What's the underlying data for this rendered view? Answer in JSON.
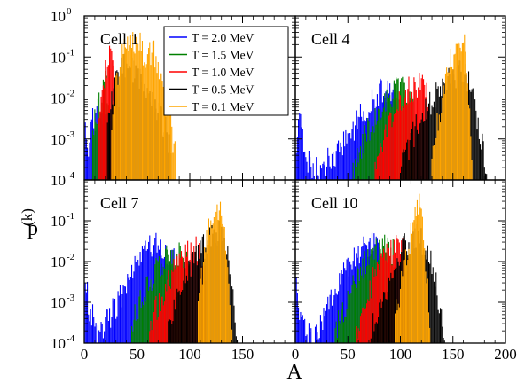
{
  "chart_data": {
    "type": "bar",
    "title": "",
    "xlabel": "A",
    "ylabel": "p(k)",
    "ylabel_main": "p",
    "ylabel_superscript": "(k)",
    "y_scale": "log",
    "xlim": [
      0,
      200
    ],
    "ylim": [
      0.0001,
      1
    ],
    "x_ticks": [
      "0",
      "50",
      "100",
      "150",
      "200"
    ],
    "y_ticks": [
      {
        "base": "10",
        "exp": "0"
      },
      {
        "base": "10",
        "exp": "-1"
      },
      {
        "base": "10",
        "exp": "-2"
      },
      {
        "base": "10",
        "exp": "-3"
      },
      {
        "base": "10",
        "exp": "-4"
      }
    ],
    "legend_position": "top-left panel, upper right",
    "series": [
      {
        "name": "T = 2.0 MeV",
        "color": "#0000ff"
      },
      {
        "name": "T = 1.5 MeV",
        "color": "#008000"
      },
      {
        "name": "T = 1.0 MeV",
        "color": "#ff0000"
      },
      {
        "name": "T = 0.5 MeV",
        "color": "#000000"
      },
      {
        "name": "T = 0.1 MeV",
        "color": "#ffa500"
      }
    ],
    "panels": [
      {
        "label": "Cell 1",
        "envelopes": [
          {
            "series": 0,
            "start": 1,
            "end": 22,
            "peaks": [
              [
                1,
                0.002
              ],
              [
                4,
                0.0008
              ],
              [
                8,
                0.004
              ],
              [
                13,
                0.003
              ],
              [
                18,
                0.004
              ],
              [
                21,
                0.002
              ]
            ]
          },
          {
            "series": 1,
            "start": 8,
            "end": 24,
            "peaks": [
              [
                8,
                0.002
              ],
              [
                12,
                0.005
              ],
              [
                16,
                0.01
              ],
              [
                20,
                0.03
              ],
              [
                23,
                0.006
              ]
            ]
          },
          {
            "series": 2,
            "start": 14,
            "end": 34,
            "peaks": [
              [
                14,
                0.003
              ],
              [
                20,
                0.05
              ],
              [
                24,
                0.15
              ],
              [
                28,
                0.06
              ],
              [
                33,
                0.006
              ]
            ]
          },
          {
            "series": 3,
            "start": 22,
            "end": 82,
            "peaks": [
              [
                22,
                0.002
              ],
              [
                28,
                0.02
              ],
              [
                34,
                0.06
              ],
              [
                40,
                0.07
              ],
              [
                48,
                0.04
              ],
              [
                56,
                0.02
              ],
              [
                64,
                0.01
              ],
              [
                72,
                0.004
              ],
              [
                80,
                0.001
              ]
            ]
          },
          {
            "series": 4,
            "start": 26,
            "end": 86,
            "peaks": [
              [
                26,
                0.003
              ],
              [
                32,
                0.05
              ],
              [
                40,
                0.25
              ],
              [
                46,
                0.2
              ],
              [
                52,
                0.3
              ],
              [
                58,
                0.1
              ],
              [
                66,
                0.15
              ],
              [
                74,
                0.03
              ],
              [
                80,
                0.005
              ],
              [
                86,
                0.0005
              ]
            ]
          }
        ]
      },
      {
        "label": "Cell 4",
        "envelopes": [
          {
            "series": 0,
            "start": 1,
            "end": 95,
            "peaks": [
              [
                1,
                0.001
              ],
              [
                4,
                0.004
              ],
              [
                10,
                0.0004
              ],
              [
                22,
                0.00015
              ],
              [
                40,
                0.0006
              ],
              [
                60,
                0.003
              ],
              [
                80,
                0.015
              ],
              [
                95,
                0.02
              ]
            ]
          },
          {
            "series": 1,
            "start": 55,
            "end": 112,
            "peaks": [
              [
                55,
                0.0002
              ],
              [
                70,
                0.002
              ],
              [
                85,
                0.008
              ],
              [
                100,
                0.02
              ],
              [
                112,
                0.015
              ]
            ]
          },
          {
            "series": 2,
            "start": 75,
            "end": 126,
            "peaks": [
              [
                75,
                0.0002
              ],
              [
                90,
                0.003
              ],
              [
                105,
                0.015
              ],
              [
                118,
                0.025
              ],
              [
                126,
                0.01
              ]
            ]
          },
          {
            "series": 3,
            "start": 100,
            "end": 182,
            "peaks": [
              [
                100,
                0.0002
              ],
              [
                115,
                0.002
              ],
              [
                130,
                0.01
              ],
              [
                145,
                0.03
              ],
              [
                160,
                0.05
              ],
              [
                170,
                0.01
              ],
              [
                182,
                0.0002
              ]
            ]
          },
          {
            "series": 4,
            "start": 130,
            "end": 168,
            "peaks": [
              [
                130,
                0.0005
              ],
              [
                140,
                0.01
              ],
              [
                148,
                0.08
              ],
              [
                156,
                0.3
              ],
              [
                162,
                0.2
              ],
              [
                168,
                0.0005
              ]
            ]
          }
        ]
      },
      {
        "label": "Cell 7",
        "envelopes": [
          {
            "series": 0,
            "start": 1,
            "end": 85,
            "peaks": [
              [
                1,
                0.005
              ],
              [
                4,
                0.001
              ],
              [
                12,
                0.0002
              ],
              [
                20,
                0.0003
              ],
              [
                40,
                0.003
              ],
              [
                55,
                0.015
              ],
              [
                65,
                0.03
              ],
              [
                75,
                0.02
              ],
              [
                85,
                0.015
              ]
            ]
          },
          {
            "series": 1,
            "start": 45,
            "end": 100,
            "peaks": [
              [
                45,
                0.0003
              ],
              [
                60,
                0.003
              ],
              [
                75,
                0.012
              ],
              [
                90,
                0.02
              ],
              [
                100,
                0.012
              ]
            ]
          },
          {
            "series": 2,
            "start": 62,
            "end": 115,
            "peaks": [
              [
                62,
                0.0003
              ],
              [
                75,
                0.002
              ],
              [
                90,
                0.012
              ],
              [
                105,
                0.025
              ],
              [
                115,
                0.008
              ]
            ]
          },
          {
            "series": 3,
            "start": 80,
            "end": 145,
            "peaks": [
              [
                80,
                0.0003
              ],
              [
                95,
                0.005
              ],
              [
                110,
                0.02
              ],
              [
                122,
                0.05
              ],
              [
                132,
                0.07
              ],
              [
                145,
                0.0002
              ]
            ]
          },
          {
            "series": 4,
            "start": 108,
            "end": 140,
            "peaks": [
              [
                108,
                0.001
              ],
              [
                116,
                0.03
              ],
              [
                122,
                0.2
              ],
              [
                126,
                0.3
              ],
              [
                132,
                0.08
              ],
              [
                140,
                0.0003
              ]
            ]
          }
        ]
      },
      {
        "label": "Cell 10",
        "envelopes": [
          {
            "series": 0,
            "start": 1,
            "end": 80,
            "peaks": [
              [
                1,
                0.003
              ],
              [
                4,
                0.0008
              ],
              [
                10,
                0.00015
              ],
              [
                20,
                0.0002
              ],
              [
                35,
                0.002
              ],
              [
                55,
                0.015
              ],
              [
                70,
                0.03
              ],
              [
                80,
                0.02
              ]
            ]
          },
          {
            "series": 1,
            "start": 38,
            "end": 95,
            "peaks": [
              [
                38,
                0.0002
              ],
              [
                55,
                0.003
              ],
              [
                70,
                0.015
              ],
              [
                85,
                0.03
              ],
              [
                95,
                0.015
              ]
            ]
          },
          {
            "series": 2,
            "start": 58,
            "end": 108,
            "peaks": [
              [
                58,
                0.0002
              ],
              [
                72,
                0.003
              ],
              [
                88,
                0.015
              ],
              [
                100,
                0.03
              ],
              [
                108,
                0.01
              ]
            ]
          },
          {
            "series": 3,
            "start": 72,
            "end": 142,
            "peaks": [
              [
                72,
                0.0002
              ],
              [
                90,
                0.004
              ],
              [
                105,
                0.03
              ],
              [
                118,
                0.05
              ],
              [
                130,
                0.01
              ],
              [
                142,
                0.0002
              ]
            ]
          },
          {
            "series": 4,
            "start": 95,
            "end": 128,
            "peaks": [
              [
                95,
                0.0005
              ],
              [
                105,
                0.01
              ],
              [
                112,
                0.08
              ],
              [
                116,
                0.4
              ],
              [
                120,
                0.2
              ],
              [
                128,
                0.0005
              ]
            ]
          }
        ]
      }
    ]
  }
}
